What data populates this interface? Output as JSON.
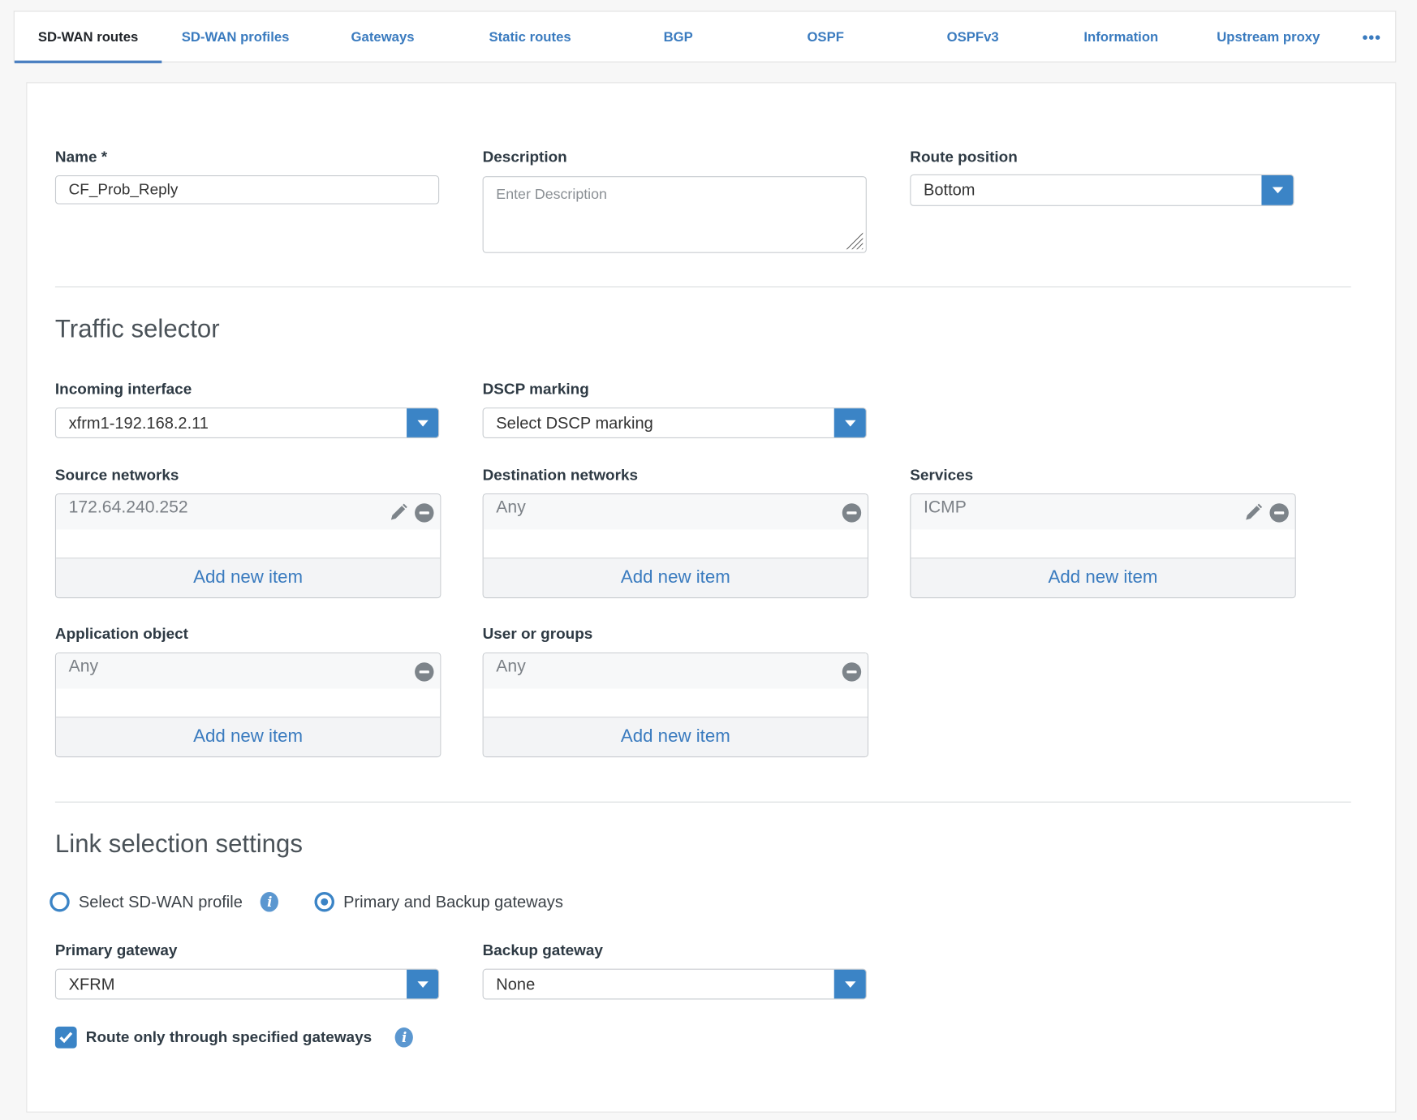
{
  "tabs": [
    {
      "label": "SD-WAN routes",
      "active": true
    },
    {
      "label": "SD-WAN profiles"
    },
    {
      "label": "Gateways"
    },
    {
      "label": "Static routes"
    },
    {
      "label": "BGP"
    },
    {
      "label": "OSPF"
    },
    {
      "label": "OSPFv3"
    },
    {
      "label": "Information"
    },
    {
      "label": "Upstream proxy"
    }
  ],
  "more_icon": "ellipsis-icon",
  "form": {
    "name": {
      "label": "Name *",
      "value": "CF_Prob_Reply"
    },
    "description": {
      "label": "Description",
      "placeholder": "Enter Description",
      "value": ""
    },
    "route_position": {
      "label": "Route position",
      "value": "Bottom"
    }
  },
  "traffic_selector": {
    "title": "Traffic selector",
    "incoming_interface": {
      "label": "Incoming interface",
      "value": "xfrm1-192.168.2.11"
    },
    "dscp_marking": {
      "label": "DSCP marking",
      "value": "Select DSCP marking"
    },
    "source_networks": {
      "label": "Source networks",
      "items": [
        "172.64.240.252"
      ],
      "add_label": "Add new item"
    },
    "destination_networks": {
      "label": "Destination networks",
      "items": [
        "Any"
      ],
      "add_label": "Add new item"
    },
    "services": {
      "label": "Services",
      "items": [
        "ICMP"
      ],
      "add_label": "Add new item"
    },
    "application_object": {
      "label": "Application object",
      "items": [
        "Any"
      ],
      "add_label": "Add new item"
    },
    "user_or_groups": {
      "label": "User or groups",
      "items": [
        "Any"
      ],
      "add_label": "Add new item"
    }
  },
  "link_selection": {
    "title": "Link selection settings",
    "options": [
      {
        "label": "Select SD-WAN profile",
        "selected": false
      },
      {
        "label": "Primary and Backup gateways",
        "selected": true
      }
    ],
    "primary_gateway": {
      "label": "Primary gateway",
      "value": "XFRM"
    },
    "backup_gateway": {
      "label": "Backup gateway",
      "value": "None"
    },
    "route_only": {
      "label": "Route only through specified gateways",
      "checked": true
    }
  },
  "colors": {
    "accent": "#3b84c6",
    "tab_text": "#3a7bbf"
  }
}
